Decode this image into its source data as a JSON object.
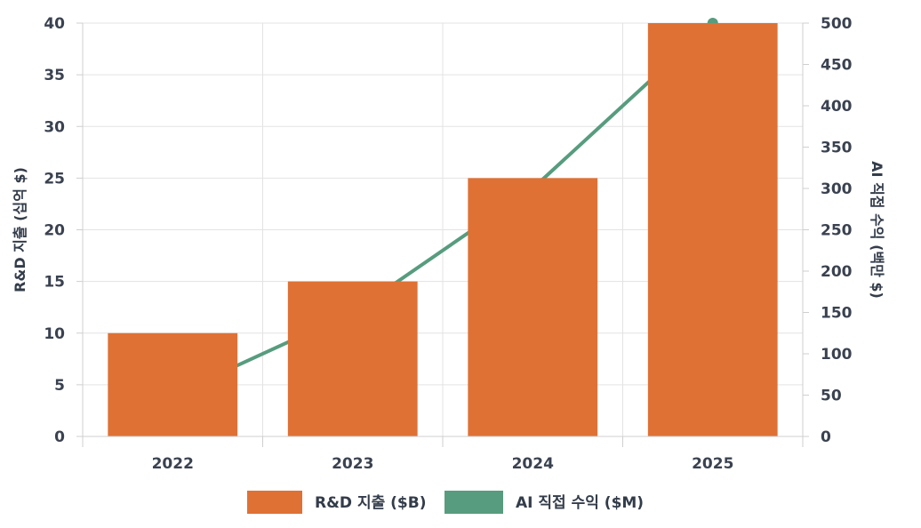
{
  "chart_data": {
    "type": "bar",
    "categories": [
      "2022",
      "2023",
      "2024",
      "2025"
    ],
    "series": [
      {
        "name": "R&D 지출 ($B)",
        "kind": "bar",
        "axis": "left",
        "color": "#df7135",
        "values": [
          10,
          15,
          25,
          40
        ]
      },
      {
        "name": "AI 직접 수익 ($M)",
        "kind": "line",
        "axis": "right",
        "color": "#579c7e",
        "values": [
          50,
          150,
          300,
          500
        ]
      }
    ],
    "y_left": {
      "label": "R&D 지출 (십억 $)",
      "ylim": [
        0,
        40
      ],
      "ticks": [
        "0",
        "5",
        "10",
        "15",
        "20",
        "25",
        "30",
        "35",
        "40"
      ]
    },
    "y_right": {
      "label": "AI 직접 수익 (백만 $)",
      "ylim": [
        0,
        500
      ],
      "ticks": [
        "0",
        "50",
        "100",
        "150",
        "200",
        "250",
        "300",
        "350",
        "400",
        "450",
        "500"
      ]
    },
    "grid": true,
    "legend_position": "bottom-center"
  }
}
